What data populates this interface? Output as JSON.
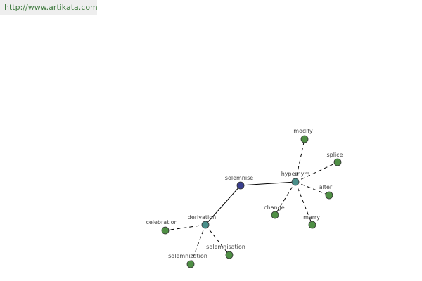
{
  "header": {
    "url": "http://www.artikata.com"
  },
  "nodes": [
    {
      "label": "solemnise"
    },
    {
      "label": "hypernym"
    },
    {
      "label": "derivation"
    },
    {
      "label": "modify"
    },
    {
      "label": "splice"
    },
    {
      "label": "alter"
    },
    {
      "label": "change"
    },
    {
      "label": "marry"
    },
    {
      "label": "celebration"
    },
    {
      "label": "solemnization"
    },
    {
      "label": "solemnisation"
    }
  ]
}
